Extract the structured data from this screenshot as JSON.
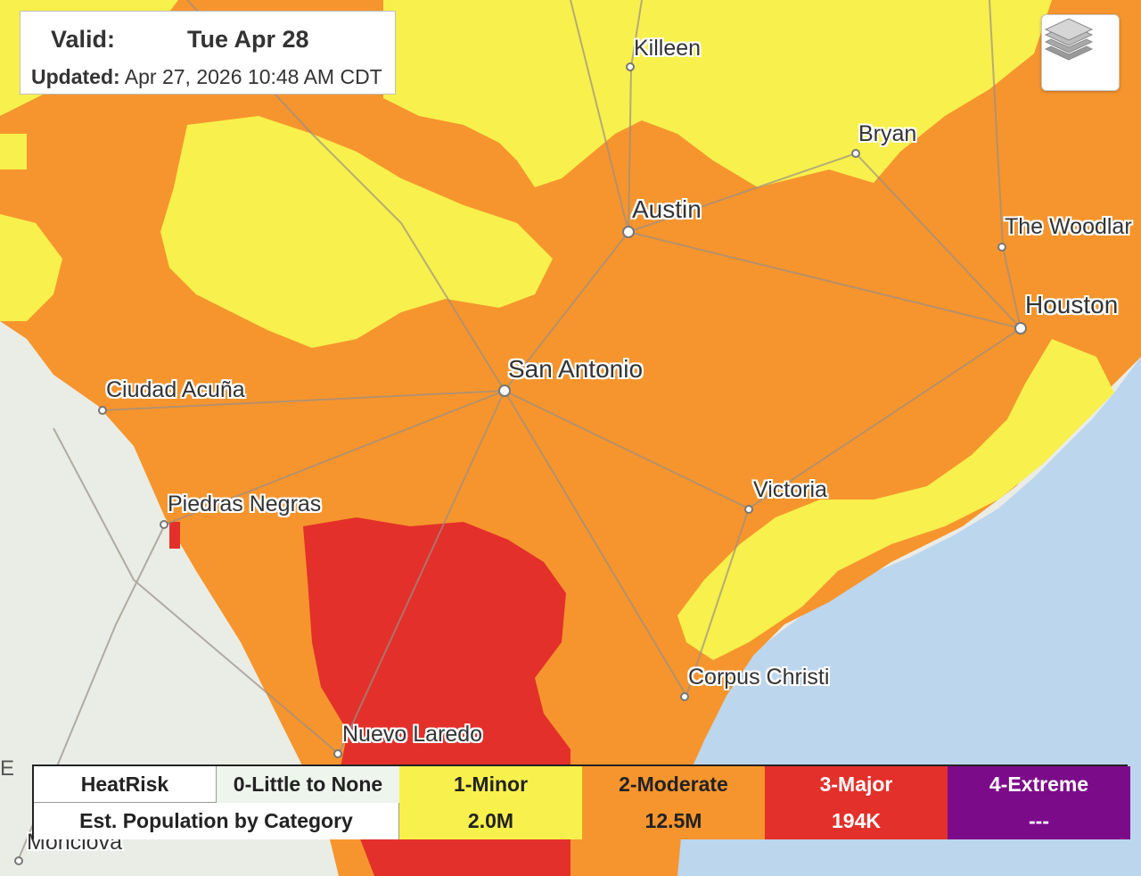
{
  "header": {
    "valid_label": "Valid:",
    "valid_value": "Tue  Apr 28",
    "updated_label": "Updated:",
    "updated_value": "Apr 27, 2026 10:48 AM CDT"
  },
  "layers_button": {
    "icon": "layers-icon"
  },
  "cities": [
    {
      "name": "Killeen"
    },
    {
      "name": "Bryan"
    },
    {
      "name": "Austin"
    },
    {
      "name": "The Woodlar"
    },
    {
      "name": "Houston"
    },
    {
      "name": "San Antonio"
    },
    {
      "name": "Ciudad Acuña"
    },
    {
      "name": "Piedras Negras"
    },
    {
      "name": "Victoria"
    },
    {
      "name": "Corpus Christi"
    },
    {
      "name": "Nuevo Laredo"
    },
    {
      "name": "Monclova"
    }
  ],
  "edge_text": "E",
  "legend": {
    "header_label": "HeatRisk",
    "population_label": "Est. Population by Category",
    "categories": [
      {
        "label": "0-Little to None",
        "population": "",
        "color": "#edf5ec"
      },
      {
        "label": "1-Minor",
        "population": "2.0M",
        "color": "#f8f04c"
      },
      {
        "label": "2-Moderate",
        "population": "12.5M",
        "color": "#f6952d"
      },
      {
        "label": "3-Major",
        "population": "194K",
        "color": "#e3302a"
      },
      {
        "label": "4-Extreme",
        "population": "---",
        "color": "#7c0b8a"
      }
    ]
  },
  "colors": {
    "land": "#e9ede6",
    "water": "#bcd6ee",
    "minor": "#f8f04c",
    "moderate": "#f6952d",
    "major": "#e3302a",
    "roads": "#9a8f86"
  }
}
